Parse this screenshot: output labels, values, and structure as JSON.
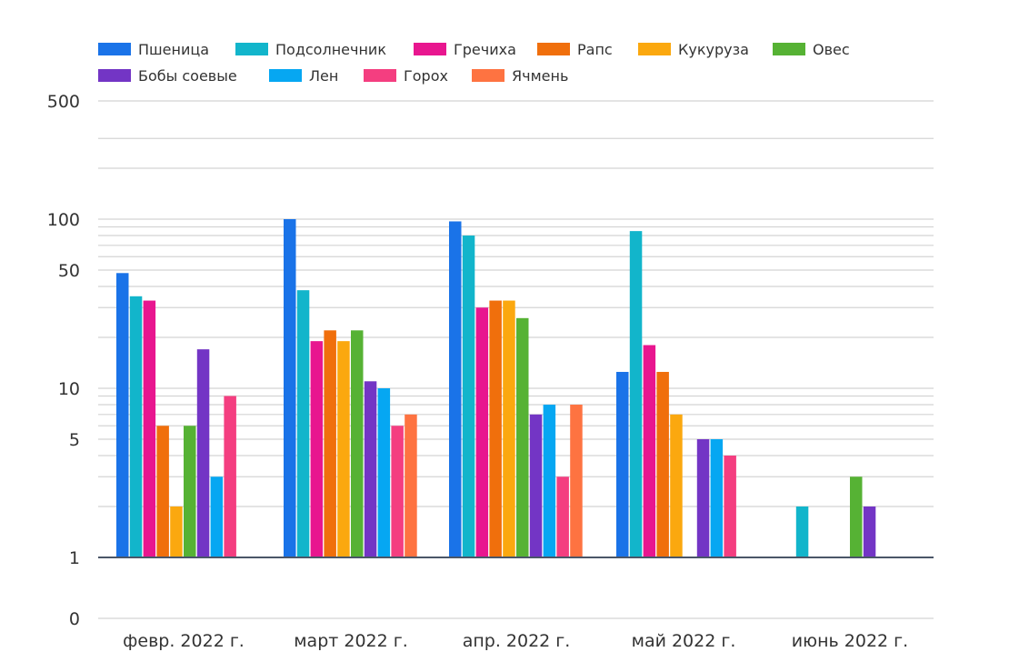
{
  "chart_data": {
    "type": "bar",
    "title": "",
    "xlabel": "",
    "ylabel": "",
    "y_scale": "log",
    "yticks": [
      {
        "value": 0,
        "label": "0"
      },
      {
        "value": 1,
        "label": "1"
      },
      {
        "value": 5,
        "label": "5"
      },
      {
        "value": 10,
        "label": "10"
      },
      {
        "value": 50,
        "label": "50"
      },
      {
        "value": 100,
        "label": "100"
      },
      {
        "value": 500,
        "label": "500"
      }
    ],
    "legend_position": "top-left",
    "grid": true,
    "categories": [
      "февр. 2022 г.",
      "март 2022 г.",
      "апр. 2022 г.",
      "май 2022 г.",
      "июнь 2022 г."
    ],
    "series": [
      {
        "name": "Пшеница",
        "color": "#1A73E8",
        "values": [
          48,
          100,
          97,
          12.5,
          null
        ]
      },
      {
        "name": "Подсолнечник",
        "color": "#12B5CB",
        "values": [
          35,
          38,
          80,
          85,
          2
        ]
      },
      {
        "name": "Гречиха",
        "color": "#E8168F",
        "values": [
          33,
          19,
          30,
          18,
          null
        ]
      },
      {
        "name": "Рапс",
        "color": "#F06F0C",
        "values": [
          6,
          22,
          33,
          12.5,
          null
        ]
      },
      {
        "name": "Кукуруза",
        "color": "#FBA80F",
        "values": [
          2,
          19,
          33,
          7,
          null
        ]
      },
      {
        "name": "Овес",
        "color": "#56B234",
        "values": [
          6,
          22,
          26,
          null,
          3
        ]
      },
      {
        "name": "Бобы соевые",
        "color": "#7335C5",
        "values": [
          17,
          11,
          7,
          5,
          2
        ]
      },
      {
        "name": "Лен",
        "color": "#06A7F2",
        "values": [
          3,
          10,
          8,
          5,
          null
        ]
      },
      {
        "name": "Горох",
        "color": "#F43E80",
        "values": [
          9,
          6,
          3,
          4,
          null
        ]
      },
      {
        "name": "Ячмень",
        "color": "#FE7341",
        "values": [
          null,
          7,
          8,
          null,
          null
        ]
      }
    ]
  }
}
